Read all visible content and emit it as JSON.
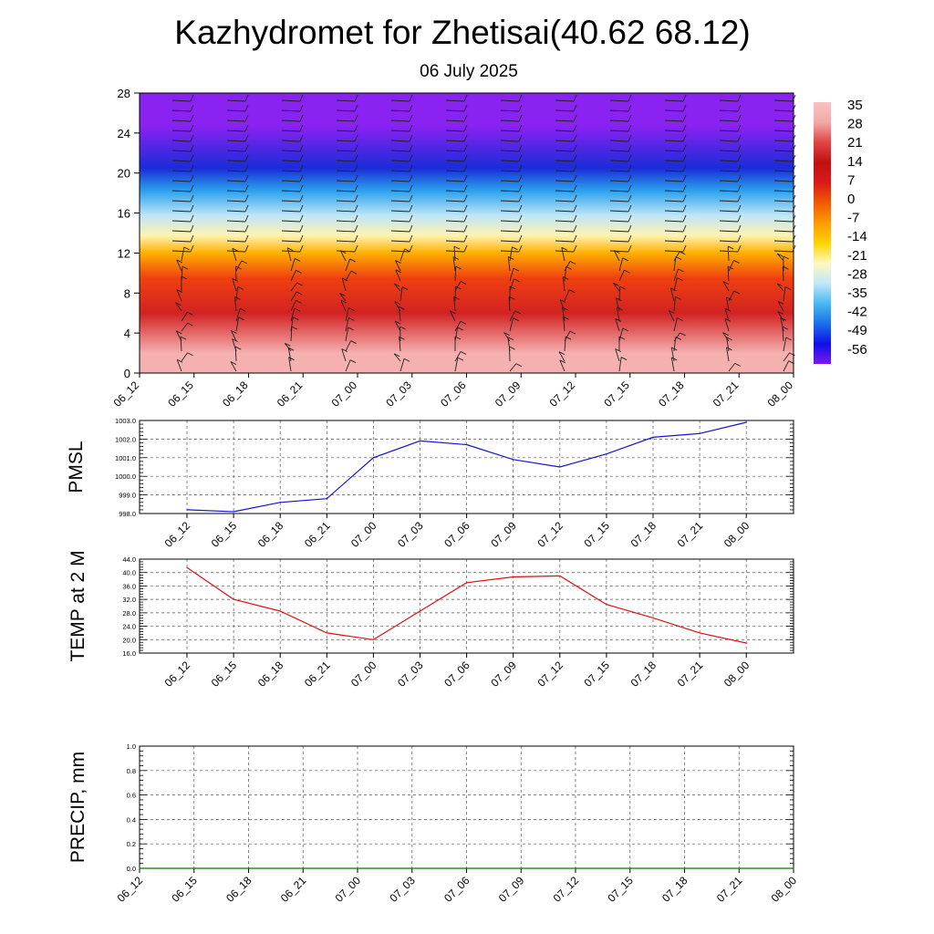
{
  "header": {
    "title": "Kazhydromet for Zhetisai(40.62 68.12)",
    "date": "06 July 2025"
  },
  "colors": {
    "pmsl_line": "#1414d8",
    "temp_line": "#e01010",
    "precip_line": "#007a00",
    "grid": "#555555"
  },
  "chart_data": [
    {
      "type": "heatmap",
      "name": "cross-section",
      "categories": [
        "06_12",
        "06_15",
        "06_18",
        "06_21",
        "07_00",
        "07_03",
        "07_06",
        "07_09",
        "07_12",
        "07_15",
        "07_18",
        "07_21",
        "08_00"
      ],
      "ylim": [
        0,
        28
      ],
      "yticks": [
        0,
        4,
        8,
        12,
        16,
        20,
        24,
        28
      ],
      "colorbar": {
        "labels": [
          "35",
          "28",
          "21",
          "14",
          "7",
          "0",
          "-7",
          "-14",
          "-21",
          "-28",
          "-35",
          "-42",
          "-49",
          "-56"
        ],
        "colors": [
          "#f8c2c2",
          "#f4a8a8",
          "#e04545",
          "#c01010",
          "#d81a1a",
          "#f25a00",
          "#ff9a00",
          "#ffd400",
          "#fff8c0",
          "#c0e8f8",
          "#48b8f0",
          "#1a70ea",
          "#1010e8",
          "#7a18f0"
        ]
      },
      "bands": [
        {
          "from": 0,
          "to": 4,
          "color": "#f5b0b0"
        },
        {
          "from": 4,
          "to": 8,
          "color": "#d22222"
        },
        {
          "from": 8,
          "to": 11,
          "color": "#f04010"
        },
        {
          "from": 11,
          "to": 13,
          "color": "#ffb000"
        },
        {
          "from": 13,
          "to": 14.5,
          "color": "#fff3b0"
        },
        {
          "from": 14.5,
          "to": 17,
          "color": "#bfe6f7"
        },
        {
          "from": 17,
          "to": 19.5,
          "color": "#2aa0ee"
        },
        {
          "from": 19.5,
          "to": 21.5,
          "color": "#1a2bd8"
        },
        {
          "from": 21.5,
          "to": 28,
          "color": "#8a22f2"
        }
      ],
      "grid": false,
      "wind_barbs": true
    },
    {
      "type": "line",
      "name": "pmsl",
      "ylabel": "PMSL",
      "ylim": [
        998.0,
        1003.0
      ],
      "yticks": [
        "998.0",
        "999.0",
        "1000.0",
        "1001.0",
        "1002.0",
        "1003.0"
      ],
      "categories": [
        "06_12",
        "06_15",
        "06_18",
        "06_21",
        "07_00",
        "07_03",
        "07_06",
        "07_09",
        "07_12",
        "07_15",
        "07_18",
        "07_21",
        "08_00"
      ],
      "values": [
        998.2,
        998.1,
        998.6,
        998.8,
        1001.0,
        1001.9,
        1001.7,
        1000.9,
        1000.5,
        1001.2,
        1002.1,
        1002.3,
        1002.9
      ],
      "grid": true
    },
    {
      "type": "line",
      "name": "temp",
      "ylabel": "TEMP at 2 M",
      "ylim": [
        16.0,
        44.0
      ],
      "yticks": [
        "16.0",
        "20.0",
        "24.0",
        "28.0",
        "32.0",
        "36.0",
        "40.0",
        "44.0"
      ],
      "categories": [
        "06_12",
        "06_15",
        "06_18",
        "06_21",
        "07_00",
        "07_03",
        "07_06",
        "07_09",
        "07_12",
        "07_15",
        "07_18",
        "07_21",
        "08_00"
      ],
      "values": [
        41.5,
        32.0,
        28.5,
        22.0,
        20.0,
        28.5,
        37.0,
        38.7,
        39.0,
        30.5,
        26.5,
        22.0,
        19.0
      ],
      "grid": true
    },
    {
      "type": "line",
      "name": "precip",
      "ylabel": "PRECIP, mm",
      "ylim": [
        0.0,
        1.0
      ],
      "yticks": [
        "0.0",
        "0.2",
        "0.4",
        "0.6",
        "0.8",
        "1.0"
      ],
      "categories": [
        "06_12",
        "06_15",
        "06_18",
        "06_21",
        "07_00",
        "07_03",
        "07_06",
        "07_09",
        "07_12",
        "07_15",
        "07_18",
        "07_21",
        "08_00"
      ],
      "values": [
        0,
        0,
        0,
        0,
        0,
        0,
        0,
        0,
        0,
        0,
        0,
        0,
        0
      ],
      "grid": true
    }
  ]
}
